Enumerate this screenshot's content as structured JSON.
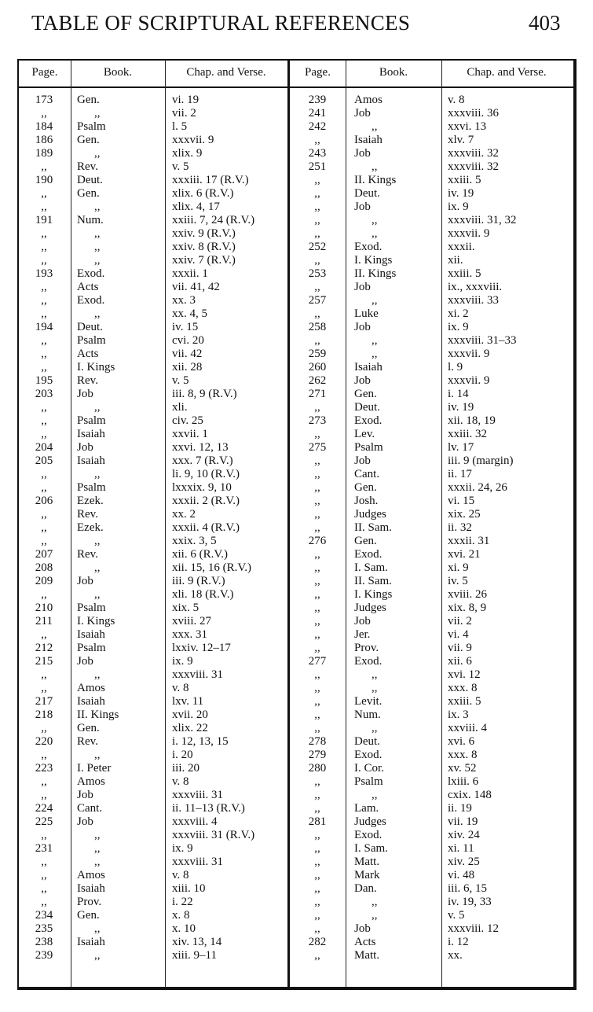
{
  "header": {
    "title": "TABLE OF SCRIPTURAL REFERENCES",
    "page_number": "403"
  },
  "columns": [
    "Page.",
    "Book.",
    "Chap. and Verse.",
    "Page.",
    "Book.",
    "Chap. and Verse."
  ],
  "left_rows": [
    [
      "173",
      "Gen.",
      "vi. 19"
    ],
    [
      ",,",
      ",,",
      "vii. 2"
    ],
    [
      "184",
      "Psalm",
      "l. 5"
    ],
    [
      "186",
      "Gen.",
      "xxxvii. 9"
    ],
    [
      "189",
      ",,",
      "xlix. 9"
    ],
    [
      ",,",
      "Rev.",
      "v. 5"
    ],
    [
      "190",
      "Deut.",
      "xxxiii. 17 (R.V.)"
    ],
    [
      ",,",
      "Gen.",
      "xlix. 6 (R.V.)"
    ],
    [
      ",,",
      ",,",
      "xlix. 4, 17"
    ],
    [
      "191",
      "Num.",
      "xxiii. 7, 24 (R.V.)"
    ],
    [
      ",,",
      ",,",
      "xxiv. 9 (R.V.)"
    ],
    [
      ",,",
      ",,",
      "xxiv. 8 (R.V.)"
    ],
    [
      ",,",
      ",,",
      "xxiv. 7 (R.V.)"
    ],
    [
      "193",
      "Exod.",
      "xxxii. 1"
    ],
    [
      ",,",
      "Acts",
      "vii. 41, 42"
    ],
    [
      ",,",
      "Exod.",
      "xx. 3"
    ],
    [
      ",,",
      ",,",
      "xx. 4, 5"
    ],
    [
      "194",
      "Deut.",
      "iv. 15"
    ],
    [
      ",,",
      "Psalm",
      "cvi. 20"
    ],
    [
      ",,",
      "Acts",
      "vii. 42"
    ],
    [
      ",,",
      "I. Kings",
      "xii. 28"
    ],
    [
      "195",
      "Rev.",
      "v. 5"
    ],
    [
      "203",
      "Job",
      "iii. 8, 9 (R.V.)"
    ],
    [
      ",,",
      ",,",
      "xli."
    ],
    [
      ",,",
      "Psalm",
      "civ. 25"
    ],
    [
      ",,",
      "Isaiah",
      "xxvii. 1"
    ],
    [
      "204",
      "Job",
      "xxvi. 12, 13"
    ],
    [
      "205",
      "Isaiah",
      "xxx. 7 (R.V.)"
    ],
    [
      ",,",
      ",,",
      "li. 9, 10 (R.V.)"
    ],
    [
      ",,",
      "Psalm",
      "lxxxix. 9, 10"
    ],
    [
      "206",
      "Ezek.",
      "xxxii. 2 (R.V.)"
    ],
    [
      ",,",
      "Rev.",
      "xx. 2"
    ],
    [
      ",,",
      "Ezek.",
      "xxxii. 4 (R.V.)"
    ],
    [
      ",,",
      ",,",
      "xxix. 3, 5"
    ],
    [
      "207",
      "Rev.",
      "xii. 6 (R.V.)"
    ],
    [
      "208",
      ",,",
      "xii. 15, 16 (R.V.)"
    ],
    [
      "209",
      "Job",
      "iii. 9 (R.V.)"
    ],
    [
      ",,",
      ",,",
      "xli. 18 (R.V.)"
    ],
    [
      "210",
      "Psalm",
      "xix. 5"
    ],
    [
      "211",
      "I. Kings",
      "xviii. 27"
    ],
    [
      ",,",
      "Isaiah",
      "xxx. 31"
    ],
    [
      "212",
      "Psalm",
      "lxxiv. 12–17"
    ],
    [
      "215",
      "Job",
      "ix. 9"
    ],
    [
      ",,",
      ",,",
      "xxxviii. 31"
    ],
    [
      ",,",
      "Amos",
      "v. 8"
    ],
    [
      "217",
      "Isaiah",
      "lxv. 11"
    ],
    [
      "218",
      "II. Kings",
      "xvii. 20"
    ],
    [
      ",,",
      "Gen.",
      "xlix. 22"
    ],
    [
      "220",
      "Rev.",
      "i. 12, 13, 15"
    ],
    [
      ",,",
      ",,",
      "i. 20"
    ],
    [
      "223",
      "I. Peter",
      "iii. 20"
    ],
    [
      ",,",
      "Amos",
      "v. 8"
    ],
    [
      ",,",
      "Job",
      "xxxviii. 31"
    ],
    [
      "224",
      "Cant.",
      "ii. 11–13 (R.V.)"
    ],
    [
      "225",
      "Job",
      "xxxviii. 4"
    ],
    [
      ",,",
      ",,",
      "xxxviii. 31 (R.V.)"
    ],
    [
      "231",
      ",,",
      "ix. 9"
    ],
    [
      ",,",
      ",,",
      "xxxviii. 31"
    ],
    [
      ",,",
      "Amos",
      "v. 8"
    ],
    [
      ",,",
      "Isaiah",
      "xiii. 10"
    ],
    [
      ",,",
      "Prov.",
      "i. 22"
    ],
    [
      "234",
      "Gen.",
      "x. 8"
    ],
    [
      "235",
      ",,",
      "x. 10"
    ],
    [
      "238",
      "Isaiah",
      "xiv. 13, 14"
    ],
    [
      "239",
      ",,",
      "xiii. 9–11"
    ]
  ],
  "right_rows": [
    [
      "239",
      "Amos",
      "v. 8"
    ],
    [
      "241",
      "Job",
      "xxxviii. 36"
    ],
    [
      "242",
      ",,",
      "xxvi. 13"
    ],
    [
      ",,",
      "Isaiah",
      "xlv. 7"
    ],
    [
      "243",
      "Job",
      "xxxviii. 32"
    ],
    [
      "251",
      ",,",
      "xxxviii. 32"
    ],
    [
      ",,",
      "II. Kings",
      "xxiii. 5"
    ],
    [
      ",,",
      "Deut.",
      "iv. 19"
    ],
    [
      ",,",
      "Job",
      "ix. 9"
    ],
    [
      ",,",
      ",,",
      "xxxviii. 31, 32"
    ],
    [
      ",,",
      ",,",
      "xxxvii. 9"
    ],
    [
      "252",
      "Exod.",
      "xxxii."
    ],
    [
      ",,",
      "I. Kings",
      "xii."
    ],
    [
      "253",
      "II. Kings",
      "xxiii. 5"
    ],
    [
      ",,",
      "Job",
      "ix., xxxviii."
    ],
    [
      "257",
      ",,",
      "xxxviii. 33"
    ],
    [
      ",,",
      "Luke",
      "xi. 2"
    ],
    [
      "258",
      "Job",
      "ix. 9"
    ],
    [
      ",,",
      ",,",
      "xxxviii. 31–33"
    ],
    [
      "259",
      ",,",
      "xxxvii. 9"
    ],
    [
      "260",
      "Isaiah",
      "l. 9"
    ],
    [
      "262",
      "Job",
      "xxxvii. 9"
    ],
    [
      "271",
      "Gen.",
      "i. 14"
    ],
    [
      ",,",
      "Deut.",
      "iv. 19"
    ],
    [
      "273",
      "Exod.",
      "xii. 18, 19"
    ],
    [
      ",,",
      "Lev.",
      "xxiii. 32"
    ],
    [
      "275",
      "Psalm",
      "lv. 17"
    ],
    [
      ",,",
      "Job",
      "iii. 9 (margin)"
    ],
    [
      ",,",
      "Cant.",
      "ii. 17"
    ],
    [
      ",,",
      "Gen.",
      "xxxii. 24, 26"
    ],
    [
      ",,",
      "Josh.",
      "vi. 15"
    ],
    [
      ",,",
      "Judges",
      "xix. 25"
    ],
    [
      ",,",
      "II. Sam.",
      "ii. 32"
    ],
    [
      "276",
      "Gen.",
      "xxxii. 31"
    ],
    [
      ",,",
      "Exod.",
      "xvi. 21"
    ],
    [
      ",,",
      "I. Sam.",
      "xi. 9"
    ],
    [
      ",,",
      "II. Sam.",
      "iv. 5"
    ],
    [
      ",,",
      "I. Kings",
      "xviii. 26"
    ],
    [
      ",,",
      "Judges",
      "xix. 8, 9"
    ],
    [
      ",,",
      "Job",
      "vii. 2"
    ],
    [
      ",,",
      "Jer.",
      "vi. 4"
    ],
    [
      ",,",
      "Prov.",
      "vii. 9"
    ],
    [
      "277",
      "Exod.",
      "xii. 6"
    ],
    [
      ",,",
      ",,",
      "xvi. 12"
    ],
    [
      ",,",
      ",,",
      "xxx. 8"
    ],
    [
      ",,",
      "Levit.",
      "xxiii. 5"
    ],
    [
      ",,",
      "Num.",
      "ix. 3"
    ],
    [
      ",,",
      ",,",
      "xxviii. 4"
    ],
    [
      "278",
      "Deut.",
      "xvi. 6"
    ],
    [
      "279",
      "Exod.",
      "xxx. 8"
    ],
    [
      "280",
      "I. Cor.",
      "xv. 52"
    ],
    [
      ",,",
      "Psalm",
      "lxiii. 6"
    ],
    [
      ",,",
      ",,",
      "cxix. 148"
    ],
    [
      ",,",
      "Lam.",
      "ii. 19"
    ],
    [
      "281",
      "Judges",
      "vii. 19"
    ],
    [
      ",,",
      "Exod.",
      "xiv. 24"
    ],
    [
      ",,",
      "I. Sam.",
      "xi. 11"
    ],
    [
      ",,",
      "Matt.",
      "xiv. 25"
    ],
    [
      ",,",
      "Mark",
      "vi. 48"
    ],
    [
      ",,",
      "Dan.",
      "iii. 6, 15"
    ],
    [
      ",,",
      ",,",
      "iv. 19, 33"
    ],
    [
      ",,",
      ",,",
      "v. 5"
    ],
    [
      ",,",
      "Job",
      "xxxviii. 12"
    ],
    [
      "282",
      "Acts",
      "i. 12"
    ],
    [
      ",,",
      "Matt.",
      "xx."
    ]
  ]
}
